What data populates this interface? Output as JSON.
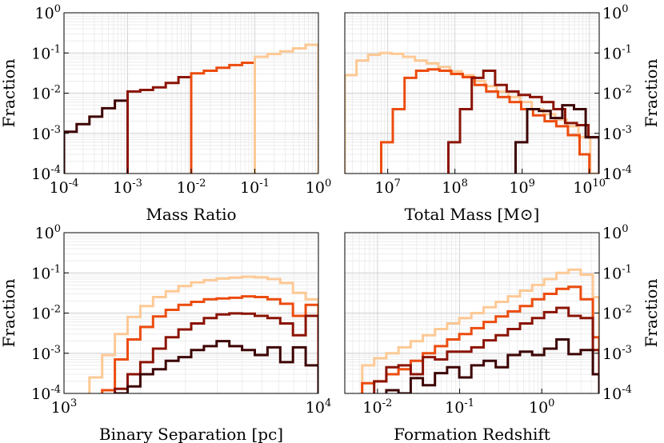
{
  "colors": {
    "series_1": "#fdc995",
    "series_2": "#ec4c0f",
    "series_3": "#8b1406",
    "series_4": "#3d0303"
  },
  "chart_data": [
    {
      "type": "line",
      "step": true,
      "xscale": "log",
      "yscale": "log",
      "xlim": [
        0.0001,
        1
      ],
      "ylim": [
        0.0001,
        1
      ],
      "xlabel": "Mass Ratio",
      "ylabel": "Fraction",
      "ylabel_side": "left",
      "xticks": [
        {
          "v": 0.0001,
          "b": "10",
          "e": "-4"
        },
        {
          "v": 0.001,
          "b": "10",
          "e": "-3"
        },
        {
          "v": 0.01,
          "b": "10",
          "e": "-2"
        },
        {
          "v": 0.1,
          "b": "10",
          "e": "-1"
        },
        {
          "v": 1,
          "b": "10",
          "e": "0"
        }
      ],
      "yticks": [
        {
          "v": 0.0001,
          "b": "10",
          "e": "-4"
        },
        {
          "v": 0.001,
          "b": "10",
          "e": "-3"
        },
        {
          "v": 0.01,
          "b": "10",
          "e": "-2"
        },
        {
          "v": 0.1,
          "b": "10",
          "e": "-1"
        },
        {
          "v": 1,
          "b": "10",
          "e": "0"
        }
      ],
      "grid": true,
      "series": [
        {
          "name": "series_4",
          "edges": [
            0.0001,
            0.000158,
            0.000251,
            0.000398,
            0.000631,
            0.001
          ],
          "values": [
            0.0011,
            0.0017,
            0.0026,
            0.0042,
            0.0065
          ]
        },
        {
          "name": "series_3",
          "edges": [
            0.001,
            0.00158,
            0.00251,
            0.00398,
            0.00631,
            0.01
          ],
          "values": [
            0.011,
            0.012,
            0.014,
            0.018,
            0.025
          ]
        },
        {
          "name": "series_2",
          "edges": [
            0.01,
            0.0158,
            0.0251,
            0.0398,
            0.0631,
            0.1
          ],
          "values": [
            0.031,
            0.036,
            0.043,
            0.05,
            0.057
          ]
        },
        {
          "name": "series_1",
          "edges": [
            0.1,
            0.158,
            0.251,
            0.398,
            0.631,
            1
          ],
          "values": [
            0.08,
            0.094,
            0.11,
            0.13,
            0.16
          ]
        }
      ]
    },
    {
      "type": "line",
      "step": true,
      "xscale": "log",
      "yscale": "log",
      "xlim": [
        2300000,
        14000000000
      ],
      "ylim": [
        0.0001,
        1
      ],
      "xlabel": "Total Mass [M⊙]",
      "ylabel": "Fraction",
      "ylabel_side": "right",
      "xticks": [
        {
          "v": 10000000,
          "b": "10",
          "e": "7"
        },
        {
          "v": 100000000,
          "b": "10",
          "e": "8"
        },
        {
          "v": 1000000000,
          "b": "10",
          "e": "9"
        },
        {
          "v": 10000000000,
          "b": "10",
          "e": "10"
        }
      ],
      "yticks": [
        {
          "v": 0.0001,
          "b": "10",
          "e": "-4"
        },
        {
          "v": 0.001,
          "b": "10",
          "e": "-3"
        },
        {
          "v": 0.01,
          "b": "10",
          "e": "-2"
        },
        {
          "v": 0.1,
          "b": "10",
          "e": "-1"
        },
        {
          "v": 1,
          "b": "10",
          "e": "0"
        }
      ],
      "grid": true,
      "series": [
        {
          "name": "series_1",
          "edges": [
            2300000,
            3430000,
            5120000,
            7640000,
            11400000,
            17000000,
            25400000,
            37900000,
            56500000,
            84300000,
            126000000,
            188000000,
            280000000,
            418000000,
            624000000,
            931000000,
            1390000000,
            2070000000,
            3090000000,
            4610000000,
            6880000000,
            10300000000,
            14000000000
          ],
          "values": [
            0.028,
            0.065,
            0.09,
            0.1,
            0.095,
            0.08,
            0.065,
            0.055,
            0.045,
            0.035,
            0.028,
            0.02,
            0.015,
            0.011,
            0.008,
            0.006,
            0.004,
            0.003,
            0.0022,
            0.0015,
            0.0008,
            0.0001
          ]
        },
        {
          "name": "series_2",
          "edges": [
            8000000,
            11900000,
            17800000,
            26500000,
            39600000,
            59000000,
            88100000,
            131000000,
            196000000,
            292000000,
            436000000,
            650000000,
            969000000,
            1450000000,
            2160000000,
            3220000000,
            4800000000,
            7160000000,
            10000000000
          ],
          "values": [
            0.0006,
            0.004,
            0.024,
            0.036,
            0.039,
            0.036,
            0.03,
            0.025,
            0.016,
            0.011,
            0.008,
            0.006,
            0.004,
            0.0028,
            0.002,
            0.0015,
            0.0009,
            0.0003
          ]
        },
        {
          "name": "series_3",
          "edges": [
            80000000,
            119000000,
            178000000,
            265000000,
            396000000,
            590000000,
            881000000,
            1310000000,
            1960000000,
            2920000000,
            4360000000,
            6500000000,
            9690000000,
            14000000000
          ],
          "values": [
            0.0006,
            0.004,
            0.024,
            0.036,
            0.016,
            0.011,
            0.009,
            0.008,
            0.006,
            0.004,
            0.0018,
            0.0016,
            0.0008
          ]
        },
        {
          "name": "series_4",
          "edges": [
            800000000,
            1190000000,
            1780000000,
            2650000000,
            3960000000,
            5900000000,
            8810000000,
            14000000000
          ],
          "values": [
            0.0006,
            0.004,
            0.0036,
            0.0024,
            0.005,
            0.004,
            0.0008
          ]
        }
      ]
    },
    {
      "type": "line",
      "step": true,
      "xscale": "log",
      "yscale": "log",
      "xlim": [
        1000,
        10000
      ],
      "ylim": [
        0.0001,
        1
      ],
      "xlabel": "Binary Separation [pc]",
      "ylabel": "Fraction",
      "ylabel_side": "left",
      "xticks": [
        {
          "v": 1000,
          "b": "10",
          "e": "3"
        },
        {
          "v": 10000,
          "b": "10",
          "e": "4"
        }
      ],
      "yticks": [
        {
          "v": 0.0001,
          "b": "10",
          "e": "-4"
        },
        {
          "v": 0.001,
          "b": "10",
          "e": "-3"
        },
        {
          "v": 0.01,
          "b": "10",
          "e": "-2"
        },
        {
          "v": 0.1,
          "b": "10",
          "e": "-1"
        },
        {
          "v": 1,
          "b": "10",
          "e": "0"
        }
      ],
      "grid": true,
      "series": [
        {
          "name": "series_1",
          "edges": [
            1259,
            1413,
            1585,
            1778,
            1995,
            2239,
            2512,
            2818,
            3162,
            3548,
            3981,
            4467,
            5012,
            5623,
            6310,
            7079,
            7943,
            8913,
            10000
          ],
          "values": [
            0.00025,
            0.0009,
            0.003,
            0.008,
            0.015,
            0.025,
            0.035,
            0.047,
            0.058,
            0.066,
            0.072,
            0.077,
            0.08,
            0.078,
            0.07,
            0.056,
            0.032,
            0.022
          ]
        },
        {
          "name": "series_2",
          "edges": [
            1413,
            1585,
            1778,
            1995,
            2239,
            2512,
            2818,
            3162,
            3548,
            3981,
            4467,
            5012,
            5623,
            6310,
            7079,
            7943,
            8913,
            10000
          ],
          "values": [
            0.00012,
            0.0007,
            0.0022,
            0.0045,
            0.0082,
            0.012,
            0.016,
            0.019,
            0.022,
            0.023,
            0.024,
            0.026,
            0.025,
            0.022,
            0.017,
            0.0085,
            0.016
          ]
        },
        {
          "name": "series_3",
          "edges": [
            1585,
            1778,
            1995,
            2239,
            2512,
            2818,
            3162,
            3548,
            3981,
            4467,
            5012,
            5623,
            6310,
            7079,
            7943,
            8913,
            10000
          ],
          "values": [
            0.00013,
            0.0003,
            0.0006,
            0.0013,
            0.0025,
            0.0039,
            0.0055,
            0.0075,
            0.0092,
            0.0098,
            0.0097,
            0.0085,
            0.0075,
            0.0055,
            0.0028,
            0.0085
          ]
        },
        {
          "name": "series_4",
          "edges": [
            1585,
            1778,
            1995,
            2239,
            2512,
            2818,
            3162,
            3548,
            3981,
            4467,
            5012,
            5623,
            6310,
            7079,
            7943,
            8913,
            10000
          ],
          "values": [
            0.0001,
            0.00015,
            0.0003,
            0.0004,
            0.00065,
            0.0008,
            0.0012,
            0.0015,
            0.002,
            0.0015,
            0.0012,
            0.0009,
            0.0014,
            0.0006,
            0.0014,
            0.0005
          ]
        }
      ]
    },
    {
      "type": "line",
      "step": true,
      "xscale": "log",
      "yscale": "log",
      "xlim": [
        0.004,
        5
      ],
      "ylim": [
        0.0001,
        1
      ],
      "xlabel": "Formation Redshift",
      "ylabel": "Fraction",
      "ylabel_side": "right",
      "xticks": [
        {
          "v": 0.01,
          "b": "10",
          "e": "-2"
        },
        {
          "v": 0.1,
          "b": "10",
          "e": "-1"
        },
        {
          "v": 1,
          "b": "10",
          "e": "0"
        }
      ],
      "yticks": [
        {
          "v": 0.0001,
          "b": "10",
          "e": "-4"
        },
        {
          "v": 0.001,
          "b": "10",
          "e": "-3"
        },
        {
          "v": 0.01,
          "b": "10",
          "e": "-2"
        },
        {
          "v": 0.1,
          "b": "10",
          "e": "-1"
        },
        {
          "v": 1,
          "b": "10",
          "e": "0"
        }
      ],
      "grid": true,
      "series": [
        {
          "name": "series_1",
          "edges": [
            0.0065,
            0.0091,
            0.0128,
            0.018,
            0.0254,
            0.0357,
            0.0501,
            0.0704,
            0.099,
            0.139,
            0.196,
            0.275,
            0.386,
            0.543,
            0.763,
            1.07,
            1.51,
            2.12,
            2.98,
            4.19,
            5
          ],
          "values": [
            0.0005,
            0.00075,
            0.001,
            0.0014,
            0.002,
            0.0028,
            0.004,
            0.0055,
            0.0075,
            0.01,
            0.014,
            0.019,
            0.026,
            0.036,
            0.05,
            0.07,
            0.1,
            0.12,
            0.09,
            0.025
          ]
        },
        {
          "name": "series_2",
          "edges": [
            0.0065,
            0.0091,
            0.0128,
            0.018,
            0.0254,
            0.0357,
            0.0501,
            0.0704,
            0.099,
            0.139,
            0.196,
            0.275,
            0.386,
            0.543,
            0.763,
            1.07,
            1.51,
            2.12,
            2.98,
            4.19,
            5
          ],
          "values": [
            0.00018,
            0.0002,
            0.0003,
            0.0004,
            0.00065,
            0.001,
            0.0015,
            0.0022,
            0.003,
            0.0042,
            0.006,
            0.0082,
            0.011,
            0.015,
            0.022,
            0.03,
            0.04,
            0.045,
            0.022,
            0.0025
          ]
        },
        {
          "name": "series_3",
          "edges": [
            0.0091,
            0.0128,
            0.018,
            0.0254,
            0.0357,
            0.0501,
            0.0704,
            0.099,
            0.139,
            0.196,
            0.275,
            0.386,
            0.543,
            0.763,
            1.07,
            1.51,
            2.12,
            2.98,
            4.19,
            5
          ],
          "values": [
            0.0002,
            0.00045,
            0.0005,
            0.0003,
            0.0008,
            0.0007,
            0.0011,
            0.0011,
            0.0014,
            0.0021,
            0.0028,
            0.004,
            0.0055,
            0.0075,
            0.0105,
            0.0135,
            0.0085,
            0.0075,
            0.0012
          ]
        },
        {
          "name": "series_4",
          "edges": [
            0.0128,
            0.018,
            0.0254,
            0.0357,
            0.0501,
            0.0704,
            0.099,
            0.139,
            0.196,
            0.275,
            0.386,
            0.543,
            0.763,
            1.07,
            1.51,
            2.12,
            2.98,
            4.19,
            5
          ],
          "values": [
            0.00012,
            0.0001,
            0.00024,
            0.00016,
            0.00032,
            0.00045,
            0.00025,
            0.0005,
            0.00065,
            0.00045,
            0.0009,
            0.0011,
            0.0009,
            0.0013,
            0.0022,
            0.00095,
            0.0012,
            0.0003
          ]
        }
      ]
    }
  ]
}
